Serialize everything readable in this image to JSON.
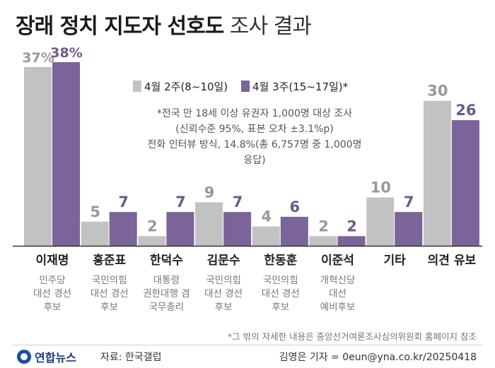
{
  "title_bold": "장래 정치 지도자 선호도",
  "title_light": "조사 결과",
  "note_lines": [
    "*전국 만 18세 이상 유권자 1,000명 대상 조사",
    "(신뢰수준 95%, 표본 오차 ±3.1%p)",
    "전화 인터뷰 방식, 14.8%(총 6,757명 중 1,000명 응답)"
  ],
  "footnote": "*그 밖의 자세한 내용은 중앙선거여론조사심의위원회 홈페이지 참조",
  "logo_text": "연합뉴스",
  "source": "자료: 한국갤럽",
  "credit": "김영은 기자 = 0eun@yna.co.kr/20250418",
  "colors": {
    "series1": "#c2c2c2",
    "series2": "#7a6499",
    "label1": "#999999",
    "label2": "#6e5a8e"
  },
  "chart_data": {
    "type": "bar",
    "categories": [
      "이재명",
      "홍준표",
      "한덕수",
      "김문수",
      "한동훈",
      "이준석",
      "기타",
      "의견 유보"
    ],
    "category_sublabels": [
      [
        "민주당",
        "대선 경선",
        "후보"
      ],
      [
        "국민의힘",
        "대선 경선",
        "후보"
      ],
      [
        "대통령",
        "권한대행 겸",
        "국무총리"
      ],
      [
        "국민의힘",
        "대선 경선",
        "후보"
      ],
      [
        "국민의힘",
        "대선 경선",
        "후보"
      ],
      [
        "개혁신당",
        "대선",
        "예비후보"
      ],
      [],
      []
    ],
    "series": [
      {
        "name": "4월 2주(8~10일)",
        "values": [
          37,
          5,
          2,
          9,
          4,
          2,
          10,
          30
        ],
        "labels": [
          "37%",
          "5",
          "2",
          "9",
          "4",
          "2",
          "10",
          "30"
        ]
      },
      {
        "name": "4월 3주(15~17일)*",
        "values": [
          38,
          7,
          7,
          7,
          6,
          2,
          7,
          26
        ],
        "labels": [
          "38%",
          "7",
          "7",
          "7",
          "6",
          "2",
          "7",
          "26"
        ]
      }
    ],
    "ylim": [
      0,
      38
    ],
    "legend_position": "top-center",
    "grid": false
  }
}
